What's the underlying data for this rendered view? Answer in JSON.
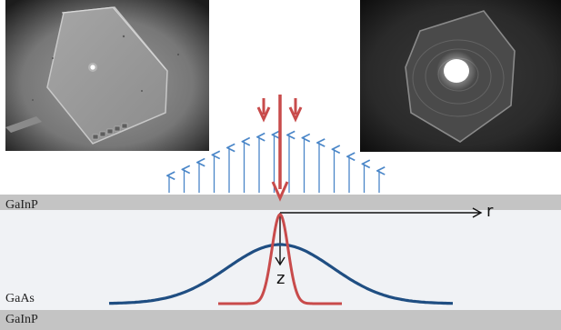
{
  "layers": {
    "top_barrier": "GaInP",
    "well": "GaAs",
    "bottom_barrier": "GaInP"
  },
  "axes": {
    "radial": "r",
    "depth": "z"
  },
  "colors": {
    "barrier": "#c4c4c4",
    "well": "#f0f2f5",
    "pump": "#c84b4b",
    "carrier_profile": "#1f4e82",
    "emission_arrows": "#4a86c8"
  }
}
